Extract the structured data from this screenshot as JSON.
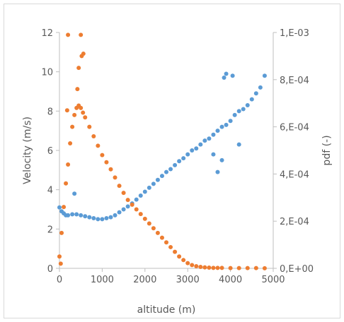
{
  "chart_data": {
    "type": "scatter",
    "title": "",
    "xlabel": "altitude (m)",
    "ylabel": "Velocity (m/s)",
    "y2label": "pdf (-)",
    "xlim": [
      0,
      5000
    ],
    "ylim": [
      0,
      12
    ],
    "y2lim": [
      0,
      0.001
    ],
    "grid": false,
    "legend": "none",
    "x_ticks": [
      "0",
      "1000",
      "2000",
      "3000",
      "4000",
      "5000"
    ],
    "y_ticks": [
      "0",
      "2",
      "4",
      "6",
      "8",
      "10",
      "12"
    ],
    "y2_ticks": [
      "0,E+00",
      "2,E-04",
      "4,E-04",
      "6,E-04",
      "8,E-04",
      "1,E-03"
    ],
    "colors": {
      "velocity": "#5b9bd5",
      "pdf": "#ed7d31",
      "axis": "#bfbfbf",
      "text": "#595959"
    },
    "series": [
      {
        "axis": "left",
        "color": "#5b9bd5",
        "x": [
          0,
          50,
          100,
          150,
          200,
          300,
          400,
          500,
          600,
          700,
          800,
          900,
          1000,
          1100,
          1200,
          1300,
          1400,
          1500,
          1600,
          1700,
          1800,
          1900,
          2000,
          2100,
          2200,
          2300,
          2400,
          2500,
          2600,
          2700,
          2800,
          2900,
          3000,
          3100,
          3200,
          3300,
          3400,
          3500,
          3600,
          3700,
          3800,
          3900,
          4000,
          4100,
          4200,
          4300,
          4400,
          4500,
          4600,
          4700,
          4800
        ],
        "y": [
          3.1,
          2.9,
          2.8,
          2.7,
          2.7,
          2.75,
          2.75,
          2.7,
          2.65,
          2.6,
          2.55,
          2.5,
          2.5,
          2.55,
          2.6,
          2.7,
          2.85,
          3.0,
          3.15,
          3.3,
          3.5,
          3.7,
          3.9,
          4.1,
          4.3,
          4.5,
          4.7,
          4.9,
          5.05,
          5.25,
          5.45,
          5.6,
          5.8,
          6.0,
          6.1,
          6.3,
          6.5,
          6.6,
          6.8,
          7.0,
          7.2,
          7.3,
          7.5,
          7.8,
          8.0,
          8.1,
          8.3,
          8.6,
          8.9,
          9.2,
          9.8
        ]
      },
      {
        "axis": "right",
        "color": "#ed7d31",
        "x": [
          0,
          50,
          100,
          150,
          200,
          250,
          300,
          350,
          400,
          450,
          500,
          550,
          600,
          700,
          800,
          900,
          1000,
          1100,
          1200,
          1300,
          1400,
          1500,
          1600,
          1700,
          1800,
          1900,
          2000,
          2100,
          2200,
          2300,
          2400,
          2500,
          2600,
          2700,
          2800,
          2900,
          3000,
          3100,
          3200,
          3300,
          3400,
          3500,
          3600,
          3700,
          3800,
          4000,
          4200,
          4400,
          4600,
          4800
        ],
        "y": [
          5e-05,
          0.00015,
          0.00026,
          0.00036,
          0.00044,
          0.00053,
          0.0006,
          0.00065,
          0.00068,
          0.00069,
          0.00068,
          0.00066,
          0.00064,
          0.0006,
          0.00056,
          0.00052,
          0.00048,
          0.00045,
          0.00042,
          0.000385,
          0.00035,
          0.00032,
          0.00029,
          0.00027,
          0.00025,
          0.00023,
          0.00021,
          0.00019,
          0.00017,
          0.00015,
          0.00013,
          0.00011,
          9e-05,
          7e-05,
          5e-05,
          3.5e-05,
          2.2e-05,
          1.4e-05,
          9e-06,
          6e-06,
          4e-06,
          3e-06,
          2e-06,
          2e-06,
          2e-06,
          1e-06,
          1e-06,
          1e-06,
          1e-06,
          5e-07
        ]
      }
    ],
    "outliers": {
      "velocity": [
        {
          "x": 350,
          "y": 3.8
        },
        {
          "x": 3900,
          "y": 9.9
        },
        {
          "x": 3850,
          "y": 9.7
        },
        {
          "x": 4050,
          "y": 9.8
        },
        {
          "x": 3800,
          "y": 5.5
        },
        {
          "x": 3700,
          "y": 4.9
        },
        {
          "x": 4200,
          "y": 6.3
        },
        {
          "x": 3600,
          "y": 5.8
        }
      ],
      "pdf": [
        {
          "x": 200,
          "y": 0.00099
        },
        {
          "x": 500,
          "y": 0.00099
        },
        {
          "x": 450,
          "y": 0.00085
        },
        {
          "x": 520,
          "y": 0.0009
        },
        {
          "x": 560,
          "y": 0.00091
        },
        {
          "x": 180,
          "y": 0.00067
        },
        {
          "x": 420,
          "y": 0.00076
        },
        {
          "x": 30,
          "y": 2e-05
        }
      ]
    }
  }
}
